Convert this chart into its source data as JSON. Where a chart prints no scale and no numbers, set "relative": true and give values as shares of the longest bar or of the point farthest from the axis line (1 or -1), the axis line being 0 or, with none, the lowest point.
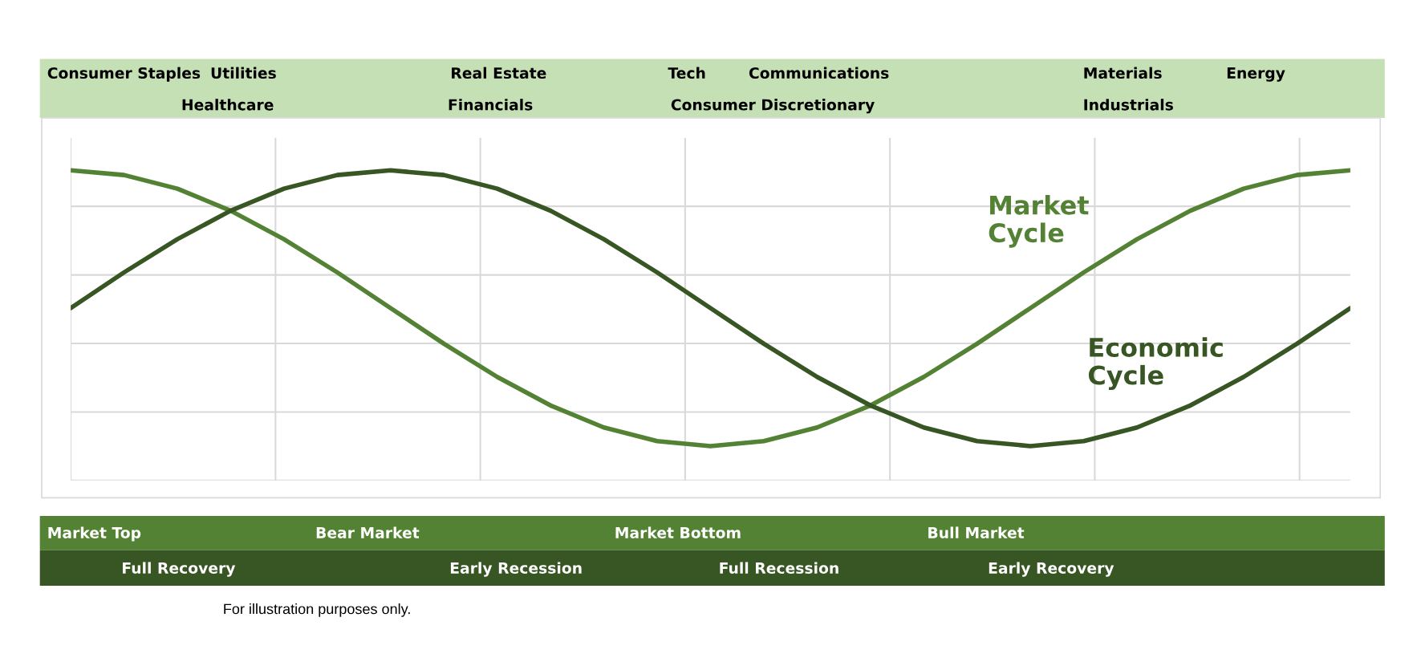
{
  "chart_data": {
    "type": "line",
    "relative": true,
    "grid": true,
    "legend": false,
    "line_style": "solid",
    "marker": "none",
    "categories": [
      null,
      null,
      null,
      null,
      null,
      null,
      null,
      null,
      null,
      null,
      null,
      null,
      null,
      null,
      null,
      null,
      null,
      null,
      null,
      null,
      null,
      null,
      null,
      null,
      null
    ],
    "series": [
      {
        "name": "Market Cycle",
        "color": "#548235",
        "values": [
          1.0,
          0.985,
          0.941,
          0.87,
          0.778,
          0.671,
          0.556,
          0.441,
          0.334,
          0.242,
          0.171,
          0.127,
          0.111,
          0.127,
          0.171,
          0.242,
          0.334,
          0.441,
          0.556,
          0.671,
          0.778,
          0.87,
          0.941,
          0.985,
          1.0
        ]
      },
      {
        "name": "Economic Cycle",
        "color": "#375623",
        "values": [
          0.556,
          0.671,
          0.778,
          0.87,
          0.941,
          0.985,
          1.0,
          0.985,
          0.941,
          0.87,
          0.778,
          0.671,
          0.556,
          0.441,
          0.334,
          0.242,
          0.171,
          0.127,
          0.111,
          0.127,
          0.171,
          0.242,
          0.334,
          0.441,
          0.556
        ]
      }
    ],
    "annotations": [
      "Consumer Staples",
      "Utilities",
      "Real Estate",
      "Tech",
      "Communications",
      "Materials",
      "Energy",
      "Healthcare",
      "Financials",
      "Consumer Discretionary",
      "Industrials",
      "Market Top",
      "Bear Market",
      "Market Bottom",
      "Bull Market",
      "Full Recovery",
      "Early Recession",
      "Full Recession",
      "Early Recovery",
      "For illustration purposes only."
    ]
  }
}
